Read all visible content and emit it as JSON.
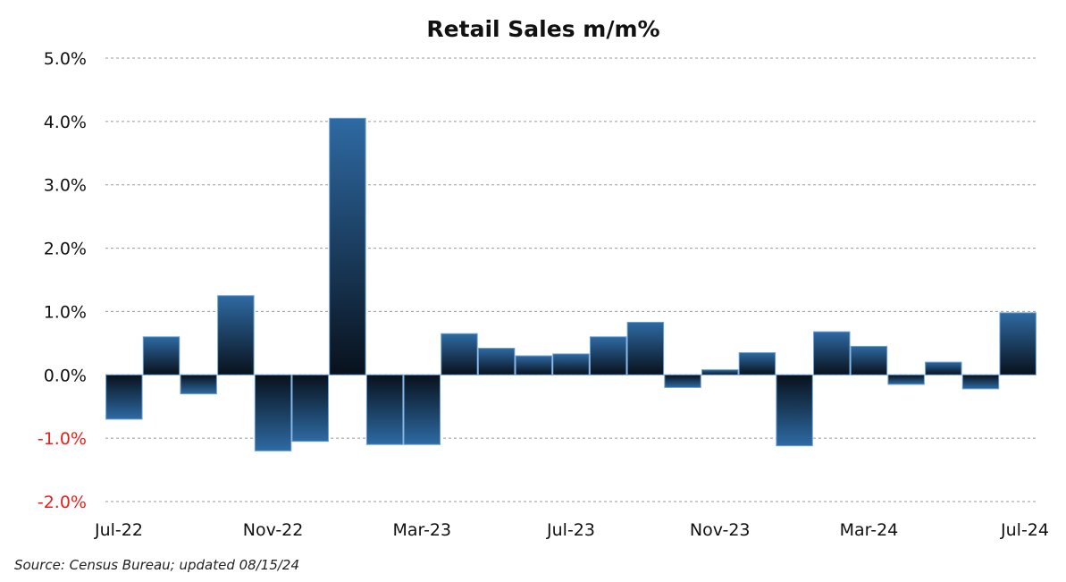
{
  "chart_data": {
    "type": "bar",
    "title": "Retail Sales m/m%",
    "xlabel": "",
    "ylabel": "",
    "ylim": [
      -2.0,
      5.0
    ],
    "y_ticks": [
      "5.0%",
      "4.0%",
      "3.0%",
      "2.0%",
      "1.0%",
      "0.0%",
      "-1.0%",
      "-2.0%"
    ],
    "y_tick_values": [
      5.0,
      4.0,
      3.0,
      2.0,
      1.0,
      0.0,
      -1.0,
      -2.0
    ],
    "x_tick_labels": [
      "Jul-22",
      "Nov-22",
      "Mar-23",
      "Jul-23",
      "Nov-23",
      "Mar-24",
      "Jul-24"
    ],
    "categories": [
      "Jul-22",
      "Aug-22",
      "Sep-22",
      "Oct-22",
      "Nov-22",
      "Dec-22",
      "Jan-23",
      "Feb-23",
      "Mar-23",
      "Apr-23",
      "May-23",
      "Jun-23",
      "Jul-23",
      "Aug-23",
      "Sep-23",
      "Oct-23",
      "Nov-23",
      "Dec-23",
      "Jan-24",
      "Feb-24",
      "Mar-24",
      "Apr-24",
      "May-24",
      "Jun-24",
      "Jul-24"
    ],
    "values": [
      -0.7,
      0.6,
      -0.3,
      1.25,
      -1.2,
      -1.05,
      4.05,
      -1.1,
      -1.1,
      0.65,
      0.42,
      0.3,
      0.33,
      0.6,
      0.83,
      -0.2,
      0.08,
      0.35,
      -1.12,
      0.68,
      0.45,
      -0.15,
      0.2,
      -0.22,
      0.98
    ],
    "grid": true,
    "bar_color": "#2a5f95",
    "negative_tick_color": "#e8201c",
    "positive_tick_color": "#111111"
  },
  "source_note": "Source:  Census Bureau;  updated  08/15/24"
}
